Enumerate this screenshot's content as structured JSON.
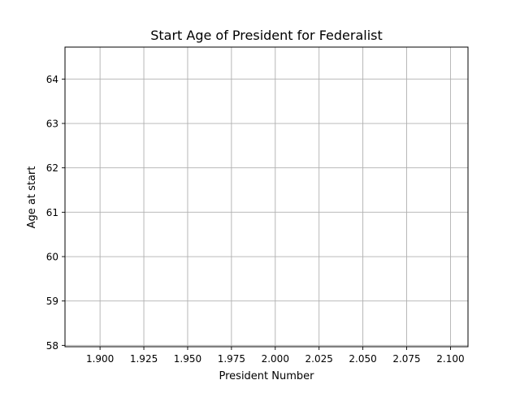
{
  "chart_data": {
    "type": "line",
    "title": "Start Age of President for Federalist",
    "xlabel": "President Number",
    "ylabel": "Age at start",
    "xlim": [
      1.88,
      2.11
    ],
    "ylim": [
      57.97,
      64.72
    ],
    "x_ticks": [
      1.9,
      1.925,
      1.95,
      1.975,
      2.0,
      2.025,
      2.05,
      2.075,
      2.1
    ],
    "x_tick_labels": [
      "1.900",
      "1.925",
      "1.950",
      "1.975",
      "2.000",
      "2.025",
      "2.050",
      "2.075",
      "2.100"
    ],
    "y_ticks": [
      58,
      59,
      60,
      61,
      62,
      63,
      64
    ],
    "y_tick_labels": [
      "58",
      "59",
      "60",
      "61",
      "62",
      "63",
      "64"
    ],
    "grid": true,
    "series": [
      {
        "x": [],
        "values": []
      }
    ],
    "colors": {
      "grid": "#b0b0b0",
      "axes": "#000000",
      "line": "#1f77b4"
    }
  }
}
